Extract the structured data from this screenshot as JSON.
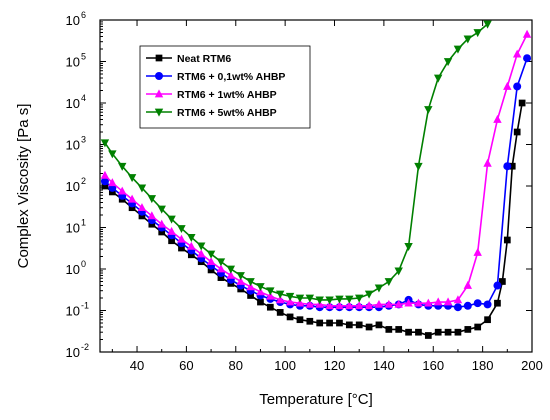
{
  "chart_data": {
    "type": "line",
    "title": "",
    "xlabel": "Temperature [°C]",
    "ylabel": "Complex Viscosity [Pa s]",
    "xlim": [
      25,
      200
    ],
    "ylim": [
      0.01,
      1000000
    ],
    "yscale": "log",
    "xticks": [
      40,
      60,
      80,
      100,
      120,
      140,
      160,
      180,
      200
    ],
    "yticks": [
      {
        "base": "10",
        "exp": "-2",
        "value": 0.01
      },
      {
        "base": "10",
        "exp": "-1",
        "value": 0.1
      },
      {
        "base": "10",
        "exp": "0",
        "value": 1
      },
      {
        "base": "10",
        "exp": "1",
        "value": 10
      },
      {
        "base": "10",
        "exp": "2",
        "value": 100
      },
      {
        "base": "10",
        "exp": "3",
        "value": 1000
      },
      {
        "base": "10",
        "exp": "4",
        "value": 10000
      },
      {
        "base": "10",
        "exp": "5",
        "value": 100000
      },
      {
        "base": "10",
        "exp": "6",
        "value": 1000000
      }
    ],
    "grid": false,
    "legend_position": "top-left",
    "series": [
      {
        "name": "Neat RTM6",
        "color": "#000000",
        "marker": "square",
        "x": [
          27,
          30,
          34,
          38,
          42,
          46,
          50,
          54,
          58,
          62,
          66,
          70,
          74,
          78,
          82,
          86,
          90,
          94,
          98,
          102,
          106,
          110,
          114,
          118,
          122,
          126,
          130,
          134,
          138,
          142,
          146,
          150,
          154,
          158,
          162,
          166,
          170,
          174,
          178,
          182,
          186,
          188,
          190,
          192,
          194,
          196
        ],
        "y": [
          100,
          72,
          48,
          30,
          19,
          12,
          7.8,
          4.8,
          3.2,
          2.2,
          1.5,
          0.95,
          0.62,
          0.45,
          0.33,
          0.23,
          0.16,
          0.12,
          0.09,
          0.07,
          0.06,
          0.055,
          0.05,
          0.05,
          0.05,
          0.045,
          0.045,
          0.04,
          0.045,
          0.035,
          0.035,
          0.03,
          0.03,
          0.025,
          0.03,
          0.03,
          0.03,
          0.035,
          0.04,
          0.06,
          0.15,
          0.5,
          5,
          300,
          2000,
          10000
        ]
      },
      {
        "name": "RTM6 + 0,1wt% AHBP",
        "color": "#0000ff",
        "marker": "circle",
        "x": [
          27,
          30,
          34,
          38,
          42,
          46,
          50,
          54,
          58,
          62,
          66,
          70,
          74,
          78,
          82,
          86,
          90,
          94,
          98,
          102,
          106,
          110,
          114,
          118,
          122,
          126,
          130,
          134,
          138,
          142,
          146,
          150,
          154,
          158,
          162,
          166,
          170,
          174,
          178,
          182,
          186,
          190,
          194,
          198
        ],
        "y": [
          130,
          90,
          58,
          38,
          24,
          15,
          10,
          6.5,
          4.2,
          2.8,
          1.8,
          1.2,
          0.8,
          0.55,
          0.4,
          0.3,
          0.23,
          0.19,
          0.16,
          0.14,
          0.13,
          0.13,
          0.12,
          0.12,
          0.12,
          0.12,
          0.12,
          0.12,
          0.12,
          0.13,
          0.14,
          0.18,
          0.14,
          0.13,
          0.13,
          0.13,
          0.12,
          0.13,
          0.15,
          0.14,
          0.4,
          300,
          25000,
          120000
        ]
      },
      {
        "name": "RTM6 + 1wt% AHBP",
        "color": "#ff00ff",
        "marker": "triangle-up",
        "x": [
          27,
          30,
          34,
          38,
          42,
          46,
          50,
          54,
          58,
          62,
          66,
          70,
          74,
          78,
          82,
          86,
          90,
          94,
          98,
          102,
          106,
          110,
          114,
          118,
          122,
          126,
          130,
          134,
          138,
          142,
          146,
          150,
          154,
          158,
          162,
          166,
          170,
          174,
          178,
          182,
          186,
          190,
          194,
          198
        ],
        "y": [
          180,
          120,
          75,
          48,
          30,
          19,
          12,
          8,
          5.2,
          3.5,
          2.3,
          1.5,
          1.0,
          0.7,
          0.5,
          0.37,
          0.28,
          0.22,
          0.18,
          0.16,
          0.15,
          0.14,
          0.14,
          0.13,
          0.13,
          0.13,
          0.13,
          0.13,
          0.14,
          0.14,
          0.14,
          0.15,
          0.15,
          0.15,
          0.16,
          0.16,
          0.18,
          0.4,
          2.5,
          350,
          4000,
          25000,
          150000,
          450000
        ]
      },
      {
        "name": "RTM6 + 5wt% AHBP",
        "color": "#008000",
        "marker": "triangle-down",
        "x": [
          27,
          30,
          34,
          38,
          42,
          46,
          50,
          54,
          58,
          62,
          66,
          70,
          74,
          78,
          82,
          86,
          90,
          94,
          98,
          102,
          106,
          110,
          114,
          118,
          122,
          126,
          130,
          134,
          138,
          142,
          146,
          150,
          154,
          158,
          162,
          166,
          170,
          174,
          178,
          182
        ],
        "y": [
          1100,
          600,
          300,
          160,
          90,
          50,
          28,
          16,
          9.5,
          5.8,
          3.6,
          2.3,
          1.5,
          1.0,
          0.7,
          0.5,
          0.38,
          0.3,
          0.25,
          0.22,
          0.2,
          0.2,
          0.18,
          0.18,
          0.19,
          0.19,
          0.2,
          0.25,
          0.35,
          0.5,
          0.9,
          3.5,
          300,
          7000,
          40000,
          100000,
          200000,
          350000,
          500000,
          800000
        ]
      }
    ]
  }
}
